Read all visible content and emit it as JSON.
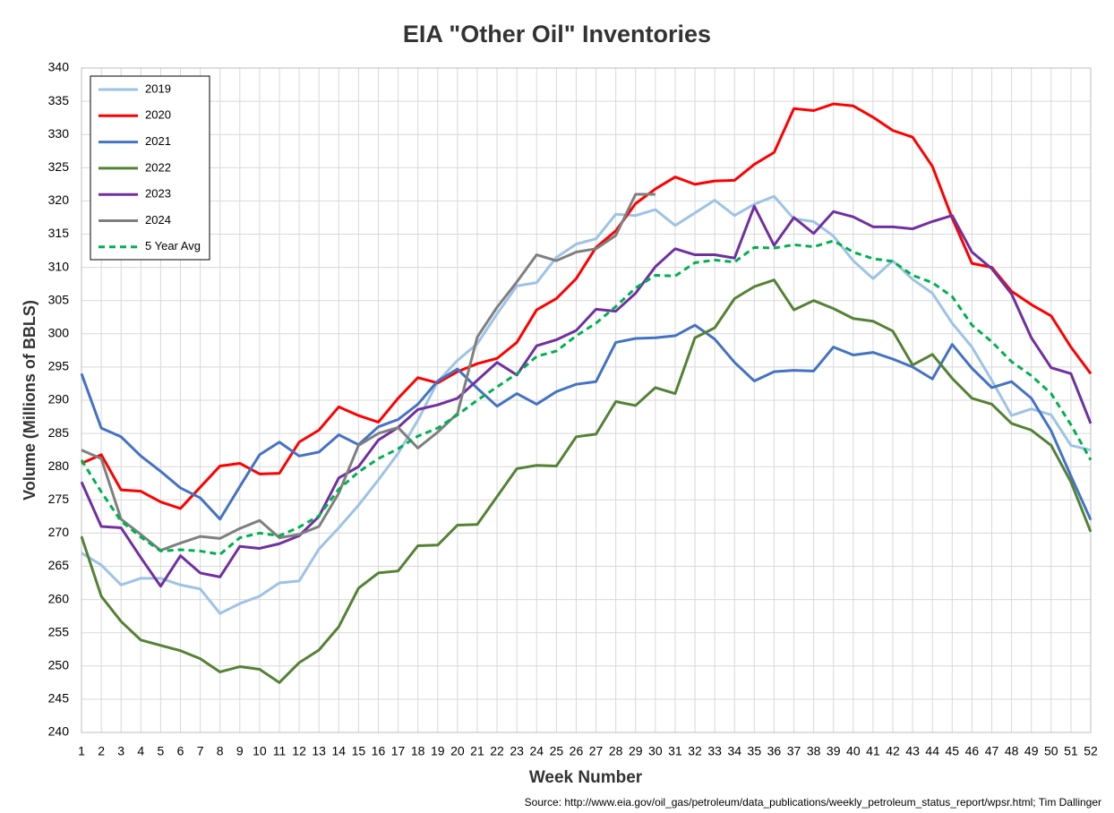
{
  "chart_data": {
    "type": "line",
    "title": "EIA \"Other Oil\" Inventories",
    "x_label": "Week Number",
    "y_label": "Volume (Millions of BBLS)",
    "source": "Source: http://www.eia.gov/oil_gas/petroleum/data_publications/weekly_petroleum_status_report/wpsr.html; Tim Dallinger",
    "x": [
      1,
      2,
      3,
      4,
      5,
      6,
      7,
      8,
      9,
      10,
      11,
      12,
      13,
      14,
      15,
      16,
      17,
      18,
      19,
      20,
      21,
      22,
      23,
      24,
      25,
      26,
      27,
      28,
      29,
      30,
      31,
      32,
      33,
      34,
      35,
      36,
      37,
      38,
      39,
      40,
      41,
      42,
      43,
      44,
      45,
      46,
      47,
      48,
      49,
      50,
      51,
      52
    ],
    "xlim": [
      1,
      52
    ],
    "xticks": [
      1,
      2,
      3,
      4,
      5,
      6,
      7,
      8,
      9,
      10,
      11,
      12,
      13,
      14,
      15,
      16,
      17,
      18,
      19,
      20,
      21,
      22,
      23,
      24,
      25,
      26,
      27,
      28,
      29,
      30,
      31,
      32,
      33,
      34,
      35,
      36,
      37,
      38,
      39,
      40,
      41,
      42,
      43,
      44,
      45,
      46,
      47,
      48,
      49,
      50,
      51,
      52
    ],
    "ylim": [
      240,
      340
    ],
    "yticks": [
      240,
      245,
      250,
      255,
      260,
      265,
      270,
      275,
      280,
      285,
      290,
      295,
      300,
      305,
      310,
      315,
      320,
      325,
      330,
      335,
      340
    ],
    "grid": true,
    "legend": "top-left",
    "series": [
      {
        "name": "2019",
        "color": "#9dc3e6",
        "values": [
          267,
          265.2,
          262.2,
          263.2,
          263.2,
          262.2,
          261.6,
          257.9,
          259.4,
          260.5,
          262.5,
          262.8,
          267.6,
          270.8,
          274.2,
          278,
          282,
          287,
          292.8,
          296,
          298.5,
          303,
          307.2,
          307.7,
          311.5,
          313.5,
          314.3,
          318,
          317.8,
          318.7,
          316.3,
          318.2,
          320.1,
          317.8,
          319.5,
          320.7,
          317.3,
          316.9,
          314.7,
          311,
          308.3,
          311,
          308.2,
          306.1,
          301.6,
          298,
          293,
          287.7,
          288.7,
          287.8,
          283.2,
          282.5
        ]
      },
      {
        "name": "2020",
        "color": "#ff0000",
        "values": [
          280.5,
          281.8,
          276.5,
          276.3,
          274.7,
          273.7,
          276.9,
          280.1,
          280.5,
          278.9,
          279,
          283.7,
          285.5,
          289,
          287.7,
          286.7,
          290.3,
          293.4,
          292.6,
          294.3,
          295.5,
          296.3,
          298.7,
          303.6,
          305.3,
          308.3,
          313,
          315.5,
          319.6,
          321.8,
          323.6,
          322.5,
          323,
          323.1,
          325.5,
          327.3,
          333.9,
          333.6,
          334.6,
          334.3,
          332.6,
          330.6,
          329.6,
          325.2,
          317.4,
          310.6,
          310,
          306.4,
          304.4,
          302.7,
          298,
          294
        ]
      },
      {
        "name": "2021",
        "color": "#4472c4",
        "values": [
          294,
          285.8,
          284.5,
          281.6,
          279.3,
          276.8,
          275.3,
          272.1,
          277,
          281.8,
          283.7,
          281.6,
          282.2,
          284.8,
          283.3,
          286,
          287.1,
          289.4,
          292.9,
          294.7,
          291.8,
          289.1,
          291,
          289.4,
          291.3,
          292.4,
          292.8,
          298.7,
          299.3,
          299.4,
          299.7,
          301.3,
          299.2,
          295.7,
          292.9,
          294.3,
          294.5,
          294.4,
          298,
          296.8,
          297.2,
          296.2,
          295,
          293.2,
          298.4,
          294.8,
          291.9,
          292.8,
          290.3,
          285.4,
          278.6,
          272
        ]
      },
      {
        "name": "2022",
        "color": "#548235",
        "values": [
          269.5,
          260.5,
          256.7,
          253.9,
          253.1,
          252.3,
          251.1,
          249.1,
          249.9,
          249.5,
          247.5,
          250.5,
          252.4,
          255.9,
          261.7,
          264,
          264.3,
          268.1,
          268.2,
          271.2,
          271.3,
          275.5,
          279.7,
          280.2,
          280.1,
          284.5,
          284.9,
          289.8,
          289.2,
          291.9,
          291,
          299.4,
          300.9,
          305.3,
          307.1,
          308.1,
          303.6,
          305,
          303.8,
          302.3,
          301.9,
          300.4,
          295.3,
          296.9,
          293.3,
          290.3,
          289.4,
          286.5,
          285.5,
          283.2,
          277.7,
          270.2
        ]
      },
      {
        "name": "2023",
        "color": "#7030a0",
        "values": [
          277.7,
          271,
          270.8,
          266.3,
          262,
          266.6,
          264,
          263.4,
          268,
          267.7,
          268.4,
          269.6,
          272.5,
          278.3,
          280,
          284,
          285.9,
          288.6,
          289.3,
          290.3,
          293,
          295.7,
          293.8,
          298.2,
          299.1,
          300.5,
          303.7,
          303.4,
          306.1,
          310.1,
          312.8,
          311.9,
          311.9,
          311.4,
          319.2,
          313.3,
          317.5,
          315.1,
          318.4,
          317.6,
          316.1,
          316.1,
          315.8,
          316.9,
          317.8,
          312.3,
          309.8,
          306,
          299.4,
          294.9,
          294,
          286.5
        ]
      },
      {
        "name": "2024",
        "color": "#7f7f7f",
        "values": [
          282.5,
          281.2,
          272.1,
          269.8,
          267.4,
          268.5,
          269.5,
          269.2,
          270.7,
          271.9,
          269.3,
          269.8,
          271,
          276,
          283.2,
          285,
          285.9,
          282.8,
          285.2,
          288,
          299.5,
          304,
          307.8,
          311.9,
          311,
          312.3,
          312.8,
          314.8,
          321,
          321,
          null,
          null,
          null,
          null,
          null,
          null,
          null,
          null,
          null,
          null,
          null,
          null,
          null,
          null,
          null,
          null,
          null,
          null,
          null,
          null,
          null,
          null
        ]
      },
      {
        "name": "5 Year Avg",
        "color": "#00b050",
        "dashed": true,
        "values": [
          281,
          276.2,
          271.8,
          269.4,
          267.3,
          267.5,
          267.3,
          266.8,
          269.3,
          270,
          269.6,
          270.9,
          272.6,
          276.6,
          279.2,
          281.2,
          282.7,
          284.6,
          285.8,
          287.8,
          290,
          292,
          294,
          296.6,
          297.4,
          299.7,
          301.6,
          304.1,
          306.9,
          308.8,
          308.7,
          310.7,
          311.1,
          310.8,
          313,
          312.9,
          313.4,
          313.1,
          314,
          312.3,
          311.3,
          310.9,
          308.8,
          307.7,
          305.6,
          301.3,
          298.8,
          295.8,
          293.7,
          291,
          286.3,
          281
        ]
      }
    ]
  }
}
